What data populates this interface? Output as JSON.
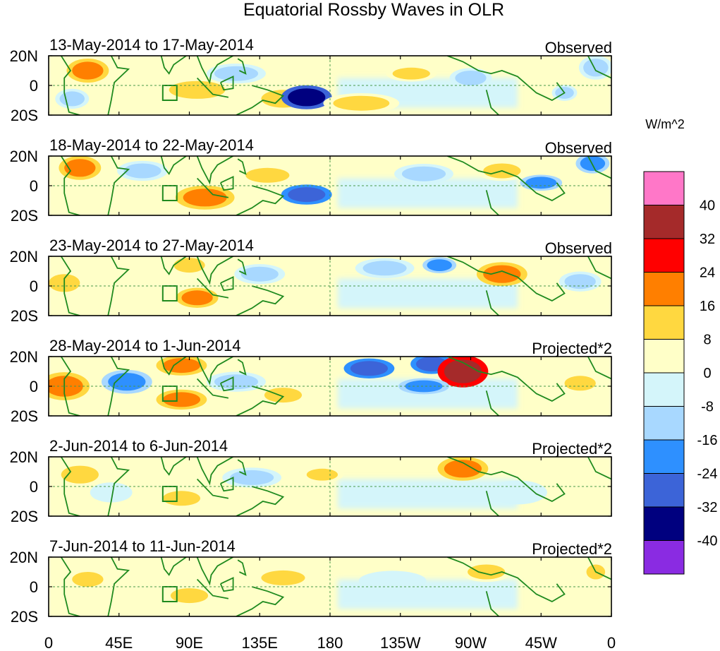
{
  "chart_data": {
    "type": "heatmap",
    "title": "Equatorial Rossby Waves in OLR",
    "units_label": "W/m^2",
    "x_ticks": [
      "0",
      "45E",
      "90E",
      "135E",
      "180",
      "135W",
      "90W",
      "45W",
      "0"
    ],
    "y_ticks": [
      "20N",
      "0",
      "20S"
    ],
    "xlim": [
      0,
      360
    ],
    "ylim": [
      -20,
      20
    ],
    "colorbar": {
      "levels": [
        "40",
        "32",
        "24",
        "16",
        "8",
        "0",
        "-8",
        "-16",
        "-24",
        "-32",
        "-40"
      ],
      "colors": [
        "#ff77c8",
        "#a52a2a",
        "#ff0000",
        "#ff7f00",
        "#ffd840",
        "#ffffc8",
        "#d4f5fa",
        "#a8d8ff",
        "#2e90ff",
        "#3c64d8",
        "#00007f",
        "#8a2be2"
      ]
    },
    "panels": [
      {
        "date_range": "13-May-2014 to 17-May-2014",
        "label": "Observed",
        "features": [
          {
            "lon": 25,
            "lat": 10,
            "rx": 10,
            "ry": 6,
            "value": 18
          },
          {
            "lon": 15,
            "lat": -9,
            "rx": 8,
            "ry": 5,
            "value": -10
          },
          {
            "lon": 95,
            "lat": -3,
            "rx": 18,
            "ry": 6,
            "value": 12
          },
          {
            "lon": 120,
            "lat": 8,
            "rx": 14,
            "ry": 5,
            "value": -9
          },
          {
            "lon": 150,
            "lat": -9,
            "rx": 14,
            "ry": 6,
            "value": 10
          },
          {
            "lon": 165,
            "lat": -8,
            "rx": 12,
            "ry": 6,
            "value": -38
          },
          {
            "lon": 200,
            "lat": -12,
            "rx": 18,
            "ry": 5,
            "value": 12
          },
          {
            "lon": 232,
            "lat": 8,
            "rx": 12,
            "ry": 4,
            "value": 10
          },
          {
            "lon": 270,
            "lat": 5,
            "rx": 10,
            "ry": 5,
            "value": -10
          },
          {
            "lon": 350,
            "lat": 12,
            "rx": 8,
            "ry": 6,
            "value": -12
          },
          {
            "lon": 330,
            "lat": -5,
            "rx": 6,
            "ry": 4,
            "value": -14
          }
        ]
      },
      {
        "date_range": "18-May-2014 to 22-May-2014",
        "label": "Observed",
        "features": [
          {
            "lon": 20,
            "lat": 12,
            "rx": 10,
            "ry": 6,
            "value": 17
          },
          {
            "lon": 60,
            "lat": 10,
            "rx": 12,
            "ry": 5,
            "value": -10
          },
          {
            "lon": 100,
            "lat": -8,
            "rx": 14,
            "ry": 6,
            "value": 17
          },
          {
            "lon": 140,
            "lat": 7,
            "rx": 14,
            "ry": 5,
            "value": 12
          },
          {
            "lon": 165,
            "lat": -6,
            "rx": 12,
            "ry": 5,
            "value": -25
          },
          {
            "lon": 240,
            "lat": 8,
            "rx": 14,
            "ry": 5,
            "value": -14
          },
          {
            "lon": 290,
            "lat": 10,
            "rx": 12,
            "ry": 5,
            "value": 12
          },
          {
            "lon": 315,
            "lat": 2,
            "rx": 10,
            "ry": 4,
            "value": -18
          },
          {
            "lon": 348,
            "lat": 15,
            "rx": 8,
            "ry": 5,
            "value": -20
          }
        ]
      },
      {
        "date_range": "23-May-2014 to 27-May-2014",
        "label": "Observed",
        "features": [
          {
            "lon": 10,
            "lat": 2,
            "rx": 10,
            "ry": 6,
            "value": 12
          },
          {
            "lon": 90,
            "lat": 14,
            "rx": 10,
            "ry": 5,
            "value": 10
          },
          {
            "lon": 95,
            "lat": -8,
            "rx": 10,
            "ry": 5,
            "value": 18
          },
          {
            "lon": 135,
            "lat": 8,
            "rx": 12,
            "ry": 5,
            "value": -10
          },
          {
            "lon": 215,
            "lat": 12,
            "rx": 14,
            "ry": 5,
            "value": -12
          },
          {
            "lon": 250,
            "lat": 14,
            "rx": 8,
            "ry": 4,
            "value": -22
          },
          {
            "lon": 290,
            "lat": 8,
            "rx": 12,
            "ry": 6,
            "value": 16
          },
          {
            "lon": 340,
            "lat": 3,
            "rx": 10,
            "ry": 5,
            "value": -9
          }
        ]
      },
      {
        "date_range": "28-May-2014 to 1-Jun-2014",
        "label": "Projected*2",
        "features": [
          {
            "lon": 10,
            "lat": 0,
            "rx": 12,
            "ry": 7,
            "value": 18
          },
          {
            "lon": 50,
            "lat": 3,
            "rx": 12,
            "ry": 6,
            "value": -22
          },
          {
            "lon": 85,
            "lat": 14,
            "rx": 12,
            "ry": 5,
            "value": 18
          },
          {
            "lon": 85,
            "lat": -9,
            "rx": 12,
            "ry": 5,
            "value": 20
          },
          {
            "lon": 120,
            "lat": 3,
            "rx": 14,
            "ry": 5,
            "value": -16
          },
          {
            "lon": 150,
            "lat": -6,
            "rx": 12,
            "ry": 5,
            "value": 14
          },
          {
            "lon": 205,
            "lat": 12,
            "rx": 12,
            "ry": 5,
            "value": -30
          },
          {
            "lon": 245,
            "lat": 15,
            "rx": 10,
            "ry": 5,
            "value": -26
          },
          {
            "lon": 265,
            "lat": 10,
            "rx": 12,
            "ry": 8,
            "value": 38
          },
          {
            "lon": 240,
            "lat": 0,
            "rx": 12,
            "ry": 4,
            "value": -18
          },
          {
            "lon": 340,
            "lat": 2,
            "rx": 10,
            "ry": 5,
            "value": 14
          }
        ]
      },
      {
        "date_range": "2-Jun-2014 to 6-Jun-2014",
        "label": "Projected*2",
        "features": [
          {
            "lon": 20,
            "lat": 8,
            "rx": 12,
            "ry": 6,
            "value": 10
          },
          {
            "lon": 40,
            "lat": -4,
            "rx": 10,
            "ry": 5,
            "value": -8
          },
          {
            "lon": 85,
            "lat": -8,
            "rx": 12,
            "ry": 5,
            "value": 12
          },
          {
            "lon": 130,
            "lat": 6,
            "rx": 14,
            "ry": 5,
            "value": -9
          },
          {
            "lon": 175,
            "lat": 8,
            "rx": 10,
            "ry": 4,
            "value": 8
          },
          {
            "lon": 265,
            "lat": 12,
            "rx": 12,
            "ry": 6,
            "value": 18
          },
          {
            "lon": 300,
            "lat": -4,
            "rx": 14,
            "ry": 6,
            "value": -8
          }
        ]
      },
      {
        "date_range": "7-Jun-2014 to 11-Jun-2014",
        "label": "Projected*2",
        "features": [
          {
            "lon": 25,
            "lat": 5,
            "rx": 10,
            "ry": 5,
            "value": 9
          },
          {
            "lon": 90,
            "lat": -6,
            "rx": 12,
            "ry": 5,
            "value": 10
          },
          {
            "lon": 150,
            "lat": 6,
            "rx": 14,
            "ry": 5,
            "value": 8
          },
          {
            "lon": 220,
            "lat": 4,
            "rx": 16,
            "ry": 5,
            "value": -8
          },
          {
            "lon": 280,
            "lat": 10,
            "rx": 12,
            "ry": 5,
            "value": 9
          },
          {
            "lon": 350,
            "lat": 10,
            "rx": 6,
            "ry": 5,
            "value": 12
          }
        ]
      }
    ]
  }
}
